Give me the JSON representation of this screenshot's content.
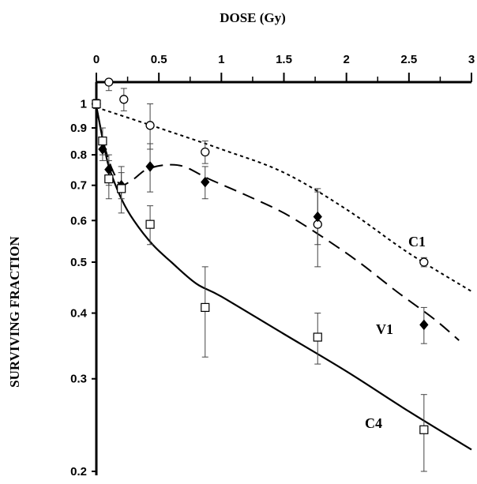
{
  "chart_data": {
    "type": "scatter",
    "xlabel": "DOSE  (Gy)",
    "ylabel": "SURVIVING   FRACTION",
    "xlim": [
      0,
      3
    ],
    "ylim": [
      0.2,
      1.1
    ],
    "yscale": "log",
    "xaxis_position": "top",
    "x_ticks": [
      {
        "value": 0,
        "label": "0"
      },
      {
        "value": 0.5,
        "label": "0.5"
      },
      {
        "value": 1,
        "label": "1"
      },
      {
        "value": 1.5,
        "label": "1.5"
      },
      {
        "value": 2,
        "label": "2"
      },
      {
        "value": 2.5,
        "label": "2.5"
      },
      {
        "value": 3,
        "label": "3"
      }
    ],
    "y_ticks": [
      {
        "value": 1,
        "label": "1"
      },
      {
        "value": 0.9,
        "label": "0.9"
      },
      {
        "value": 0.8,
        "label": "0.8"
      },
      {
        "value": 0.7,
        "label": "0.7"
      },
      {
        "value": 0.6,
        "label": "0.6"
      },
      {
        "value": 0.5,
        "label": "0.5"
      },
      {
        "value": 0.4,
        "label": "0.4"
      },
      {
        "value": 0.3,
        "label": "0.3"
      },
      {
        "value": 0.2,
        "label": "0.2"
      }
    ],
    "grid": false,
    "legend": "none",
    "series": [
      {
        "name": "C1",
        "marker": "open-circle",
        "line_style": "dotted",
        "x": [
          0,
          0.1,
          0.22,
          0.43,
          0.87,
          1.77,
          2.62
        ],
        "y": [
          1.0,
          1.1,
          1.02,
          0.91,
          0.81,
          0.59,
          0.5
        ],
        "err": [
          0.02,
          0.04,
          0.05,
          0.09,
          0.04,
          0.1,
          0.01
        ],
        "fit_x": [
          0,
          0.5,
          1,
          1.5,
          2,
          2.5,
          3
        ],
        "fit_y": [
          0.985,
          0.9,
          0.82,
          0.74,
          0.63,
          0.52,
          0.44
        ]
      },
      {
        "name": "V1",
        "marker": "filled-diamond",
        "line_style": "dashed",
        "x": [
          0,
          0.05,
          0.1,
          0.2,
          0.43,
          0.87,
          1.77,
          2.62
        ],
        "y": [
          1.0,
          0.82,
          0.75,
          0.7,
          0.76,
          0.71,
          0.61,
          0.38
        ],
        "err": [
          0.02,
          0.04,
          0.05,
          0.04,
          0.08,
          0.05,
          0.07,
          0.03
        ],
        "fit_x": [
          0,
          0.05,
          0.1,
          0.15,
          0.2,
          0.3,
          0.4,
          0.55,
          0.7,
          0.9,
          1.2,
          1.5,
          1.8,
          2.1,
          2.4,
          2.7,
          2.9
        ],
        "fit_y": [
          0.99,
          0.86,
          0.78,
          0.73,
          0.7,
          0.72,
          0.75,
          0.765,
          0.76,
          0.72,
          0.67,
          0.62,
          0.56,
          0.5,
          0.44,
          0.39,
          0.355
        ]
      },
      {
        "name": "C4",
        "marker": "open-square",
        "line_style": "solid",
        "x": [
          0,
          0.05,
          0.1,
          0.2,
          0.43,
          0.87,
          1.77,
          2.62
        ],
        "y": [
          1.0,
          0.85,
          0.72,
          0.69,
          0.59,
          0.41,
          0.36,
          0.24
        ],
        "err": [
          0.02,
          0.05,
          0.06,
          0.07,
          0.05,
          0.08,
          0.04,
          0.04
        ],
        "fit_x": [
          0,
          0.05,
          0.1,
          0.2,
          0.3,
          0.45,
          0.6,
          0.8,
          1.0,
          1.5,
          2.0,
          2.5,
          3.0
        ],
        "fit_y": [
          0.99,
          0.86,
          0.76,
          0.66,
          0.6,
          0.54,
          0.5,
          0.455,
          0.43,
          0.365,
          0.31,
          0.26,
          0.22
        ]
      }
    ]
  }
}
